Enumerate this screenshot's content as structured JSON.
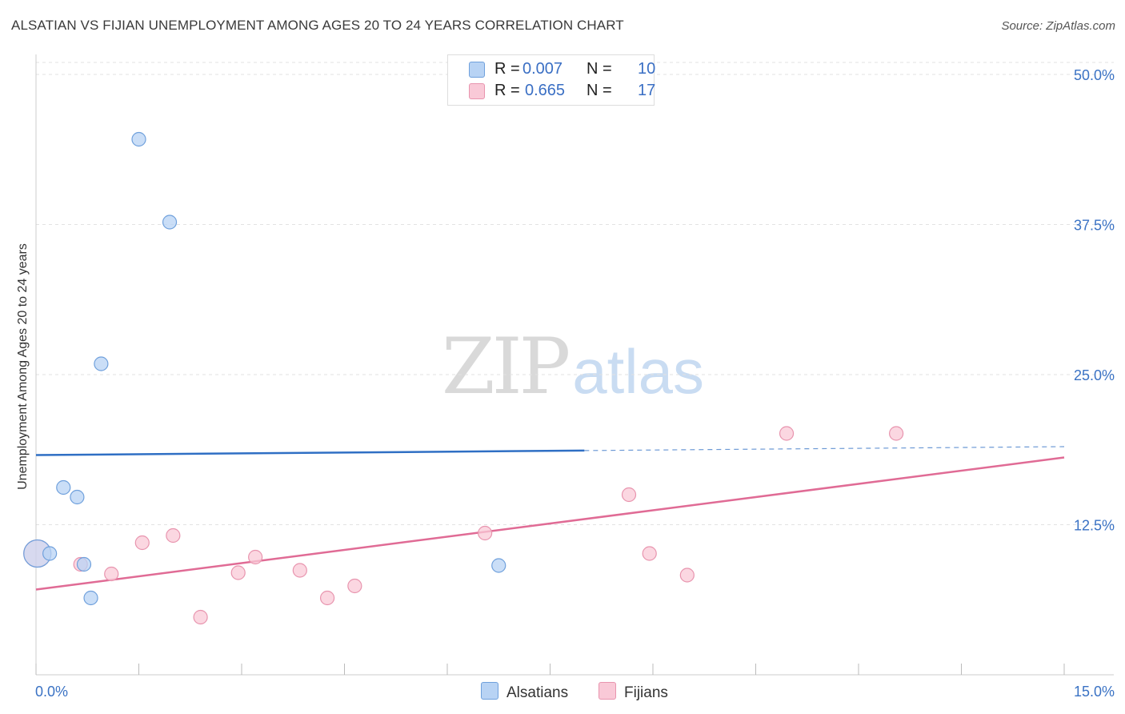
{
  "title": "ALSATIAN VS FIJIAN UNEMPLOYMENT AMONG AGES 20 TO 24 YEARS CORRELATION CHART",
  "source": "Source: ZipAtlas.com",
  "watermark": {
    "zip": "ZIP",
    "atlas": "atlas"
  },
  "colors": {
    "alsatians_fill": "#b8d3f4",
    "alsatians_stroke": "#6fa0dc",
    "alsatians_line": "#2f6fc4",
    "fijians_fill": "#f9c9d7",
    "fijians_stroke": "#e894ae",
    "fijians_line": "#e06b95",
    "tick_label": "#3a72c4",
    "grid": "#e2e2e2"
  },
  "legend": {
    "rows": [
      {
        "r_label": "R =",
        "r_value": "0.007",
        "n_label": "N =",
        "n_value": "10"
      },
      {
        "r_label": "R =",
        "r_value": "0.665",
        "n_label": "N =",
        "n_value": "17"
      }
    ]
  },
  "chart_data": {
    "type": "scatter",
    "title": "ALSATIAN VS FIJIAN UNEMPLOYMENT AMONG AGES 20 TO 24 YEARS CORRELATION CHART",
    "xlabel": "",
    "ylabel": "Unemployment Among Ages 20 to 24 years",
    "xlim": [
      0,
      15
    ],
    "ylim": [
      0,
      51
    ],
    "x_tick_labels": [
      {
        "value": 0,
        "label": "0.0%"
      },
      {
        "value": 15,
        "label": "15.0%"
      }
    ],
    "y_tick_labels": [
      {
        "value": 12.5,
        "label": "12.5%"
      },
      {
        "value": 25,
        "label": "25.0%"
      },
      {
        "value": 37.5,
        "label": "37.5%"
      },
      {
        "value": 50,
        "label": "50.0%"
      }
    ],
    "grid": true,
    "series": [
      {
        "name": "Alsatians",
        "R": 0.007,
        "N": 10,
        "points": [
          {
            "x": 0.02,
            "y": 10.1,
            "large": true
          },
          {
            "x": 0.2,
            "y": 10.1
          },
          {
            "x": 0.4,
            "y": 15.6
          },
          {
            "x": 0.6,
            "y": 14.8
          },
          {
            "x": 0.7,
            "y": 9.2
          },
          {
            "x": 0.8,
            "y": 6.4
          },
          {
            "x": 0.95,
            "y": 25.9
          },
          {
            "x": 1.5,
            "y": 44.6
          },
          {
            "x": 1.95,
            "y": 37.7
          },
          {
            "x": 6.75,
            "y": 9.1
          }
        ],
        "trend": {
          "x0": 0,
          "y0": 18.3,
          "x_solid_end": 8.0,
          "x1": 15,
          "y1": 19.0
        }
      },
      {
        "name": "Fijians",
        "R": 0.665,
        "N": 17,
        "points": [
          {
            "x": 0.02,
            "y": 10.1,
            "large": true
          },
          {
            "x": 0.65,
            "y": 9.2
          },
          {
            "x": 1.1,
            "y": 8.4
          },
          {
            "x": 1.55,
            "y": 11.0
          },
          {
            "x": 2.0,
            "y": 11.6
          },
          {
            "x": 2.4,
            "y": 4.8
          },
          {
            "x": 2.95,
            "y": 8.5
          },
          {
            "x": 3.2,
            "y": 9.8
          },
          {
            "x": 3.85,
            "y": 8.7
          },
          {
            "x": 4.25,
            "y": 6.4
          },
          {
            "x": 4.65,
            "y": 7.4
          },
          {
            "x": 6.55,
            "y": 11.8
          },
          {
            "x": 8.65,
            "y": 15.0
          },
          {
            "x": 8.95,
            "y": 10.1
          },
          {
            "x": 9.5,
            "y": 8.3
          },
          {
            "x": 10.95,
            "y": 20.1
          },
          {
            "x": 12.55,
            "y": 20.1
          }
        ],
        "trend": {
          "x0": 0,
          "y0": 7.1,
          "x1": 15,
          "y1": 18.1
        }
      }
    ]
  },
  "bottom_legend": [
    {
      "label": "Alsatians"
    },
    {
      "label": "Fijians"
    }
  ]
}
